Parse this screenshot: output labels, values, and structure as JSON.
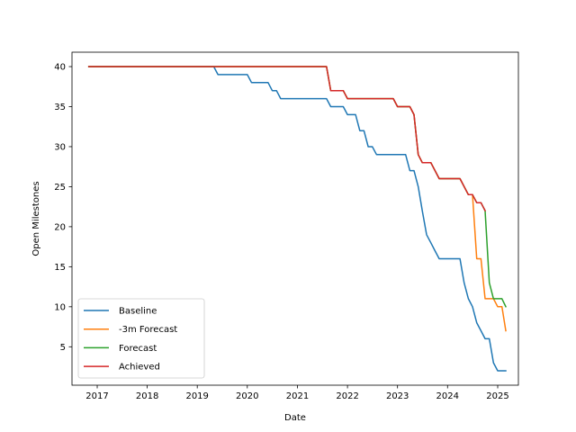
{
  "chart_data": {
    "type": "line",
    "title": "",
    "xlabel": "Date",
    "ylabel": "Open Milestones",
    "xlim": [
      "2016-07-01",
      "2025-06-01"
    ],
    "ylim": [
      0.2,
      41.8
    ],
    "x_ticks": [
      "2017",
      "2018",
      "2019",
      "2020",
      "2021",
      "2022",
      "2023",
      "2024",
      "2025"
    ],
    "y_ticks": [
      5,
      10,
      15,
      20,
      25,
      30,
      35,
      40
    ],
    "grid": false,
    "legend_position": "lower-left",
    "series": [
      {
        "name": "Baseline",
        "color": "#1f77b4",
        "points": [
          [
            "2016-11-01",
            40
          ],
          [
            "2019-05-01",
            40
          ],
          [
            "2019-06-01",
            39
          ],
          [
            "2020-01-01",
            39
          ],
          [
            "2020-02-01",
            38
          ],
          [
            "2020-06-01",
            38
          ],
          [
            "2020-07-01",
            37
          ],
          [
            "2020-08-01",
            37
          ],
          [
            "2020-09-01",
            36
          ],
          [
            "2021-08-01",
            36
          ],
          [
            "2021-09-01",
            35
          ],
          [
            "2021-12-01",
            35
          ],
          [
            "2022-01-01",
            34
          ],
          [
            "2022-03-01",
            34
          ],
          [
            "2022-04-01",
            32
          ],
          [
            "2022-05-01",
            32
          ],
          [
            "2022-06-01",
            30
          ],
          [
            "2022-07-01",
            30
          ],
          [
            "2022-08-01",
            29
          ],
          [
            "2023-03-01",
            29
          ],
          [
            "2023-04-01",
            27
          ],
          [
            "2023-05-01",
            27
          ],
          [
            "2023-06-01",
            25
          ],
          [
            "2023-07-01",
            22
          ],
          [
            "2023-08-01",
            19
          ],
          [
            "2023-09-01",
            18
          ],
          [
            "2023-10-01",
            17
          ],
          [
            "2023-11-01",
            16
          ],
          [
            "2024-04-01",
            16
          ],
          [
            "2024-05-01",
            13
          ],
          [
            "2024-06-01",
            11
          ],
          [
            "2024-07-01",
            10
          ],
          [
            "2024-08-01",
            8
          ],
          [
            "2024-09-01",
            7
          ],
          [
            "2024-10-01",
            6
          ],
          [
            "2024-11-01",
            6
          ],
          [
            "2024-12-01",
            3
          ],
          [
            "2025-01-01",
            2
          ],
          [
            "2025-03-01",
            2
          ]
        ]
      },
      {
        "name": "-3m Forecast",
        "color": "#ff7f0e",
        "points": [
          [
            "2016-11-01",
            40
          ],
          [
            "2021-08-01",
            40
          ],
          [
            "2021-09-01",
            37
          ],
          [
            "2021-12-01",
            37
          ],
          [
            "2022-01-01",
            36
          ],
          [
            "2022-12-01",
            36
          ],
          [
            "2023-01-01",
            35
          ],
          [
            "2023-04-01",
            35
          ],
          [
            "2023-05-01",
            34
          ],
          [
            "2023-06-01",
            29
          ],
          [
            "2023-07-01",
            28
          ],
          [
            "2023-09-01",
            28
          ],
          [
            "2023-11-01",
            26
          ],
          [
            "2024-04-01",
            26
          ],
          [
            "2024-06-01",
            24
          ],
          [
            "2024-07-01",
            24
          ],
          [
            "2024-08-01",
            16
          ],
          [
            "2024-09-01",
            16
          ],
          [
            "2024-10-01",
            11
          ],
          [
            "2024-12-01",
            11
          ],
          [
            "2025-01-01",
            10
          ],
          [
            "2025-02-01",
            10
          ],
          [
            "2025-03-01",
            7
          ]
        ]
      },
      {
        "name": "Forecast",
        "color": "#2ca02c",
        "points": [
          [
            "2016-11-01",
            40
          ],
          [
            "2021-08-01",
            40
          ],
          [
            "2021-09-01",
            37
          ],
          [
            "2021-12-01",
            37
          ],
          [
            "2022-01-01",
            36
          ],
          [
            "2022-12-01",
            36
          ],
          [
            "2023-01-01",
            35
          ],
          [
            "2023-04-01",
            35
          ],
          [
            "2023-05-01",
            34
          ],
          [
            "2023-06-01",
            29
          ],
          [
            "2023-07-01",
            28
          ],
          [
            "2023-09-01",
            28
          ],
          [
            "2023-11-01",
            26
          ],
          [
            "2024-04-01",
            26
          ],
          [
            "2024-06-01",
            24
          ],
          [
            "2024-07-01",
            24
          ],
          [
            "2024-08-01",
            23
          ],
          [
            "2024-09-01",
            23
          ],
          [
            "2024-10-01",
            22
          ],
          [
            "2024-11-01",
            13
          ],
          [
            "2024-12-01",
            11
          ],
          [
            "2025-02-01",
            11
          ],
          [
            "2025-03-01",
            10
          ]
        ]
      },
      {
        "name": "Achieved",
        "color": "#d62728",
        "points": [
          [
            "2016-11-01",
            40
          ],
          [
            "2021-08-01",
            40
          ],
          [
            "2021-09-01",
            37
          ],
          [
            "2021-12-01",
            37
          ],
          [
            "2022-01-01",
            36
          ],
          [
            "2022-12-01",
            36
          ],
          [
            "2023-01-01",
            35
          ],
          [
            "2023-04-01",
            35
          ],
          [
            "2023-05-01",
            34
          ],
          [
            "2023-06-01",
            29
          ],
          [
            "2023-07-01",
            28
          ],
          [
            "2023-09-01",
            28
          ],
          [
            "2023-11-01",
            26
          ],
          [
            "2024-04-01",
            26
          ],
          [
            "2024-06-01",
            24
          ],
          [
            "2024-07-01",
            24
          ],
          [
            "2024-08-01",
            23
          ],
          [
            "2024-09-01",
            23
          ],
          [
            "2024-10-01",
            22
          ]
        ]
      }
    ]
  }
}
